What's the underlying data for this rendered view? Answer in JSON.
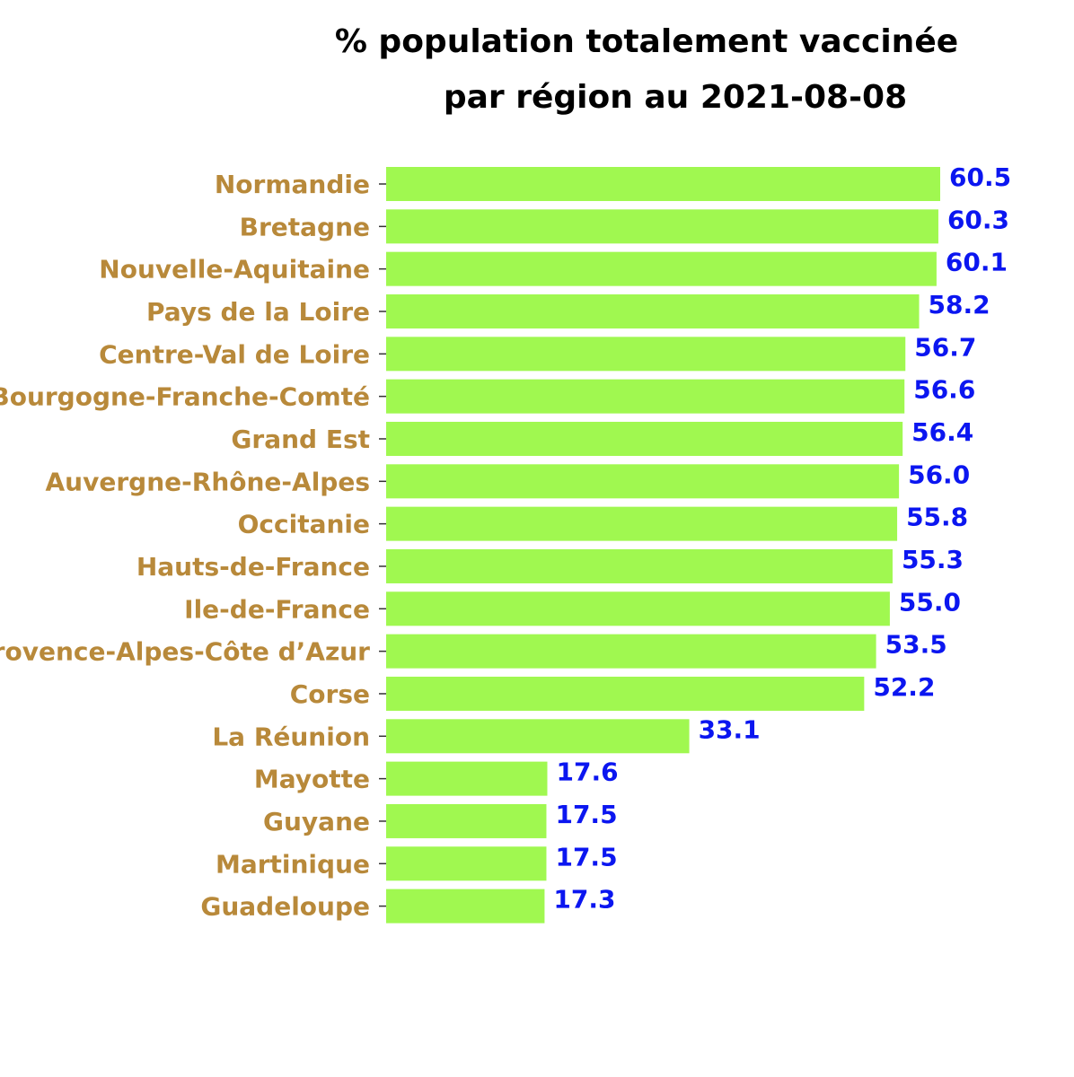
{
  "chart_data": {
    "type": "bar",
    "orientation": "horizontal",
    "title_lines": [
      "% population totalement vaccinée",
      "par région au 2021-08-08"
    ],
    "categories": [
      "Normandie",
      "Bretagne",
      "Nouvelle-Aquitaine",
      "Pays de la Loire",
      "Centre-Val de Loire",
      "Bourgogne-Franche-Comté",
      "Grand Est",
      "Auvergne-Rhône-Alpes",
      "Occitanie",
      "Hauts-de-France",
      "Ile-de-France",
      "Provence-Alpes-Côte d’Azur",
      "Corse",
      "La Réunion",
      "Mayotte",
      "Guyane",
      "Martinique",
      "Guadeloupe"
    ],
    "values": [
      60.5,
      60.3,
      60.1,
      58.2,
      56.7,
      56.6,
      56.4,
      56.0,
      55.8,
      55.3,
      55.0,
      53.5,
      52.2,
      33.1,
      17.6,
      17.5,
      17.5,
      17.3
    ],
    "value_labels": [
      "60.5",
      "60.3",
      "60.1",
      "58.2",
      "56.7",
      "56.6",
      "56.4",
      "56.0",
      "55.8",
      "55.3",
      "55.0",
      "53.5",
      "52.2",
      "33.1",
      "17.6",
      "17.5",
      "17.5",
      "17.3"
    ],
    "xlim": [
      0,
      60.5
    ],
    "grid": false,
    "colors": {
      "bar": "#a0f850",
      "category_label": "#b8893a",
      "value_label": "#0b16f0",
      "tick": "#333333"
    }
  }
}
